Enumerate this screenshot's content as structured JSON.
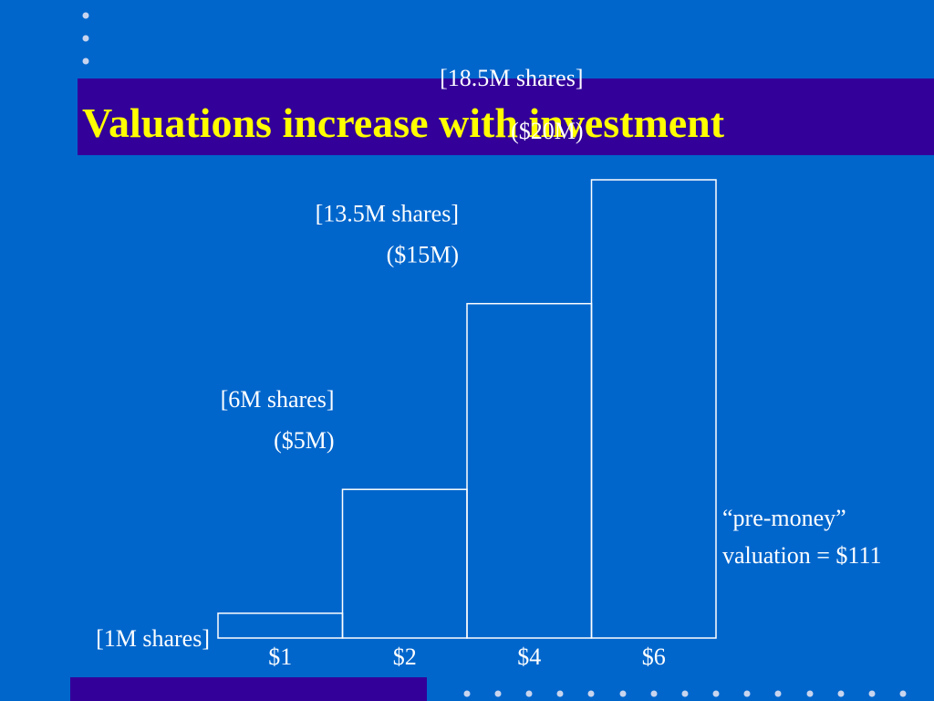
{
  "slide": {
    "title": "Valuations increase with investment",
    "annotation_line1": "“pre-money”",
    "annotation_line2": "valuation = $111",
    "colors": {
      "background": "#0066cc",
      "title_band": "#330099",
      "title_text": "#ffff00",
      "bar_outline": "#ffffff",
      "text": "#ffffff"
    }
  },
  "chart_data": {
    "type": "bar",
    "categories": [
      "$1",
      "$2",
      "$4",
      "$6"
    ],
    "values": [
      1,
      6,
      13.5,
      18.5
    ],
    "shares_labels": [
      "[1M shares]",
      "[6M shares]",
      "[13.5M shares]",
      "[18.5M shares]"
    ],
    "investment_labels": [
      "",
      "($5M)",
      "($15M)",
      "($20M)"
    ],
    "ylim": [
      0,
      18.5
    ]
  }
}
